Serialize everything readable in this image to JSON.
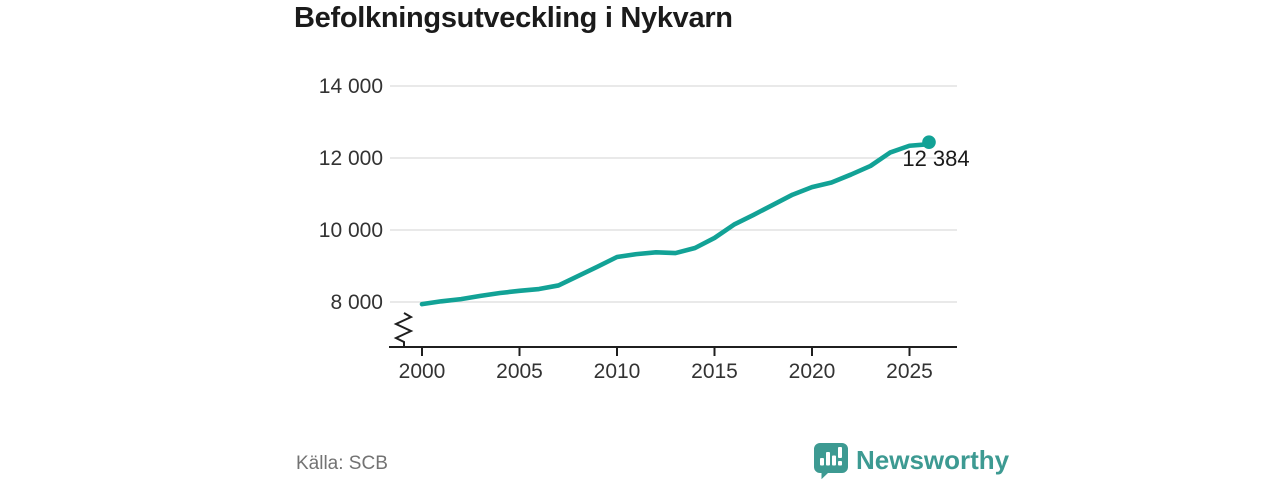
{
  "title": "Befolkningsutveckling i Nykvarn",
  "source": "Källa: SCB",
  "brand": {
    "name": "Newsworthy",
    "icon": "newsworthy-speech-bubble-bar-chart-icon",
    "color": "#3d9a92"
  },
  "colors": {
    "line": "#12a296",
    "grid": "#dcdcdc",
    "axis": "#1f1f1f",
    "tick_text": "#333333",
    "end_label_text": "#1a1a1a"
  },
  "chart_data": {
    "type": "line",
    "title": "Befolkningsutveckling i Nykvarn",
    "xlabel": "",
    "ylabel": "",
    "x": [
      2000,
      2001,
      2002,
      2003,
      2004,
      2005,
      2006,
      2007,
      2008,
      2009,
      2010,
      2011,
      2012,
      2013,
      2014,
      2015,
      2016,
      2017,
      2018,
      2019,
      2020,
      2021,
      2022,
      2023,
      2024,
      2025,
      2026
    ],
    "values": [
      7940,
      8020,
      8080,
      8170,
      8250,
      8310,
      8360,
      8460,
      8720,
      8980,
      9250,
      9330,
      9380,
      9360,
      9500,
      9780,
      10150,
      10420,
      10700,
      10980,
      11190,
      11320,
      11540,
      11780,
      12150,
      12340,
      12384
    ],
    "series_name": "Befolkning",
    "xlim": [
      2000,
      2026
    ],
    "ylim": [
      8000,
      14000
    ],
    "x_ticks": [
      2000,
      2005,
      2010,
      2015,
      2020,
      2025
    ],
    "x_tick_labels": [
      "2000",
      "2005",
      "2010",
      "2015",
      "2020",
      "2025"
    ],
    "y_ticks": [
      8000,
      10000,
      12000,
      14000
    ],
    "y_tick_labels": [
      "8 000",
      "10 000",
      "12 000",
      "14 000"
    ],
    "grid": "horizontal",
    "axis_break": true,
    "legend": "none",
    "last_point": {
      "x": 2026,
      "value": 12384,
      "label": "12 384"
    },
    "source": "Källa: SCB"
  }
}
